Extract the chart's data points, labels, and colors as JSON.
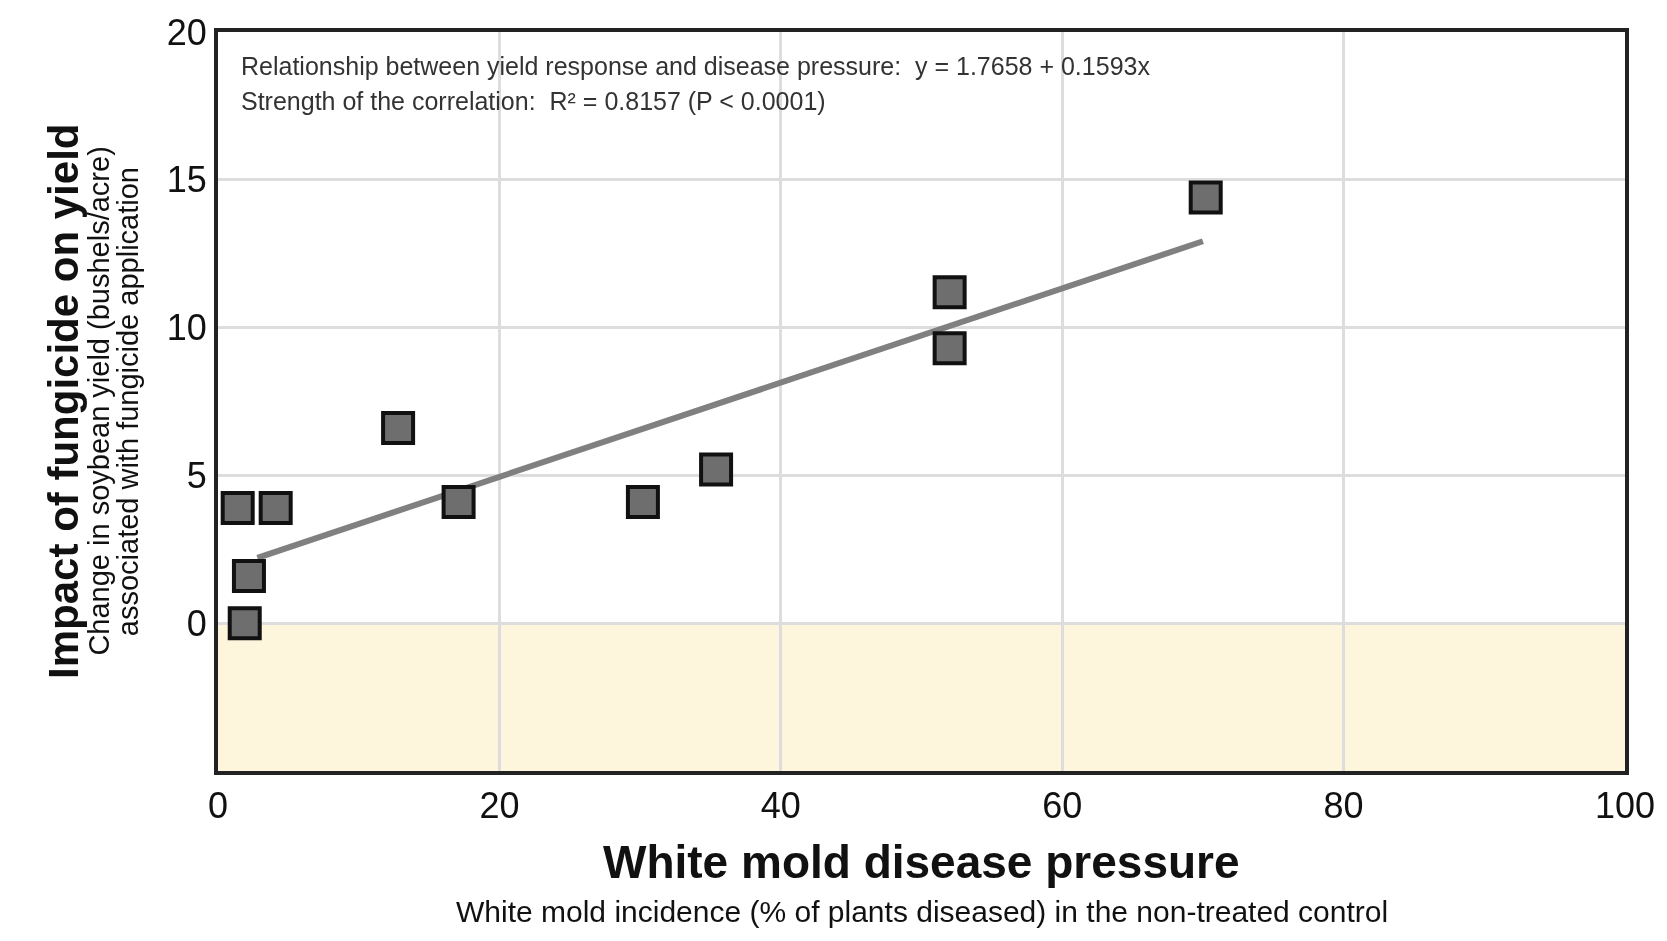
{
  "chart_data": {
    "type": "scatter",
    "xlabel": "White mold disease pressure\nWhite mold incidence (% of plants diseased) in the non-treated control",
    "ylabel": "Impact of fungicide on yield\nChange in soybean yield (bushels/acre)\nassociated with fungicide application",
    "annotations": [
      "Relationship between yield response and disease pressure:  y = 1.7658 + 0.1593x",
      "Strength of the correlation:  R² = 0.8157 (P < 0.0001)"
    ],
    "series": [
      {
        "marker": "square",
        "color": "#6e6e6e",
        "x": [
          1.4,
          4.1,
          2.2,
          1.9,
          12.8,
          17.1,
          30.2,
          35.4,
          52.0,
          52.0,
          70.2
        ],
        "values": [
          3.9,
          3.9,
          1.6,
          0,
          6.6,
          4.1,
          4.1,
          5.2,
          11.2,
          9.3,
          14.4
        ]
      },
      {
        "type": "line",
        "color": "#808080",
        "x": [
          2.8,
          70.0
        ],
        "values": [
          2.21,
          12.92
        ]
      }
    ],
    "xlim": [
      0,
      100
    ],
    "xticks": [
      0,
      20,
      40,
      60,
      80,
      100
    ],
    "ylim": [
      -5,
      20
    ],
    "yticks": [
      0,
      5,
      10,
      15,
      20
    ],
    "bands": [
      {
        "axis": "y",
        "from": -5,
        "to": 0,
        "color": "#fdf5dc"
      }
    ],
    "grid": true
  }
}
